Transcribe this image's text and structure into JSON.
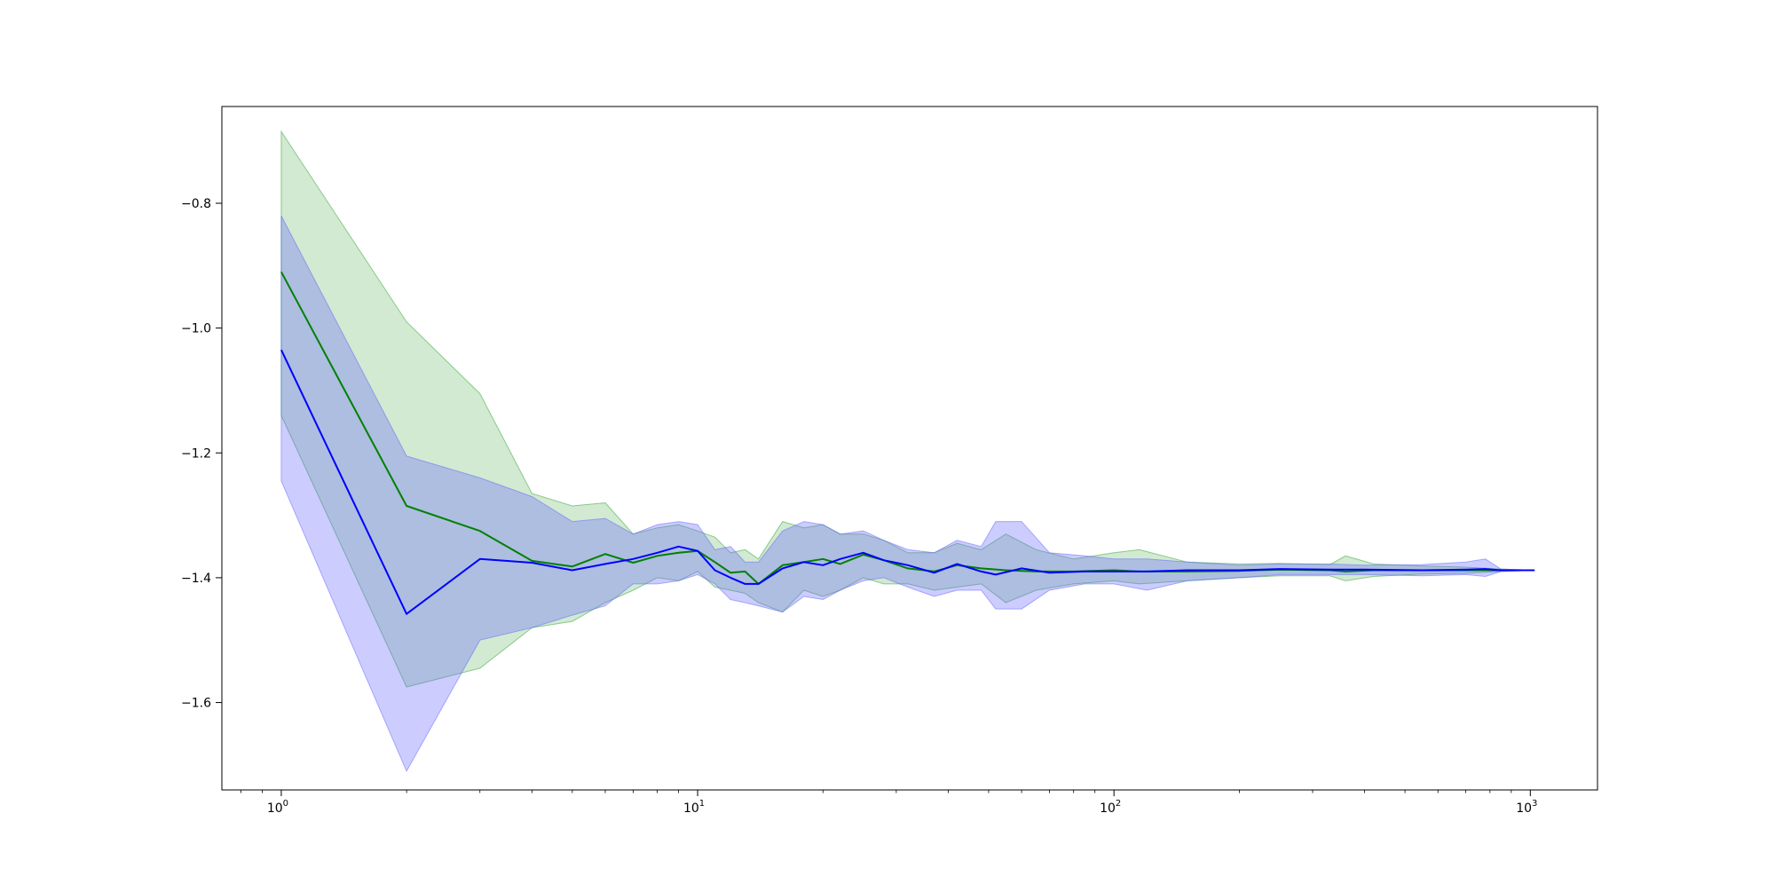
{
  "chart_data": {
    "type": "line",
    "title": "",
    "xlabel": "",
    "ylabel": "",
    "xscale": "log",
    "xlim": [
      0.72,
      1450
    ],
    "ylim": [
      -1.74,
      -0.645
    ],
    "grid": false,
    "legend": "none",
    "x_ticks": [
      {
        "value": 1,
        "base": "10",
        "exp": "0"
      },
      {
        "value": 10,
        "base": "10",
        "exp": "1"
      },
      {
        "value": 100,
        "base": "10",
        "exp": "2"
      },
      {
        "value": 1000,
        "base": "10",
        "exp": "3"
      }
    ],
    "y_ticks": [
      {
        "value": -0.8,
        "label": "−0.8"
      },
      {
        "value": -1.0,
        "label": "−1.0"
      },
      {
        "value": -1.2,
        "label": "−1.2"
      },
      {
        "value": -1.4,
        "label": "−1.4"
      },
      {
        "value": -1.6,
        "label": "−1.6"
      }
    ],
    "series": [
      {
        "color": "#008000",
        "band_color": "#2ca02c",
        "band_opacity": 0.22,
        "points": [
          [
            1,
            -0.91,
            -1.14,
            -0.685
          ],
          [
            2,
            -1.285,
            -1.575,
            -0.99
          ],
          [
            3,
            -1.325,
            -1.545,
            -1.105
          ],
          [
            4,
            -1.373,
            -1.48,
            -1.265
          ],
          [
            5,
            -1.382,
            -1.47,
            -1.285
          ],
          [
            6,
            -1.362,
            -1.44,
            -1.28
          ],
          [
            7,
            -1.376,
            -1.42,
            -1.33
          ],
          [
            8,
            -1.365,
            -1.4,
            -1.32
          ],
          [
            9,
            -1.36,
            -1.405,
            -1.315
          ],
          [
            10,
            -1.357,
            -1.39,
            -1.325
          ],
          [
            11,
            -1.375,
            -1.415,
            -1.335
          ],
          [
            12,
            -1.392,
            -1.42,
            -1.36
          ],
          [
            13,
            -1.39,
            -1.425,
            -1.355
          ],
          [
            14,
            -1.41,
            -1.44,
            -1.37
          ],
          [
            16,
            -1.38,
            -1.455,
            -1.31
          ],
          [
            18,
            -1.375,
            -1.42,
            -1.32
          ],
          [
            20,
            -1.37,
            -1.43,
            -1.315
          ],
          [
            22,
            -1.378,
            -1.42,
            -1.33
          ],
          [
            25,
            -1.363,
            -1.4,
            -1.33
          ],
          [
            28,
            -1.372,
            -1.41,
            -1.34
          ],
          [
            32,
            -1.385,
            -1.41,
            -1.36
          ],
          [
            37,
            -1.39,
            -1.42,
            -1.36
          ],
          [
            42,
            -1.38,
            -1.415,
            -1.345
          ],
          [
            48,
            -1.385,
            -1.41,
            -1.355
          ],
          [
            55,
            -1.388,
            -1.44,
            -1.33
          ],
          [
            65,
            -1.39,
            -1.42,
            -1.355
          ],
          [
            80,
            -1.39,
            -1.41,
            -1.37
          ],
          [
            100,
            -1.388,
            -1.405,
            -1.36
          ],
          [
            115,
            -1.39,
            -1.41,
            -1.355
          ],
          [
            150,
            -1.39,
            -1.405,
            -1.375
          ],
          [
            200,
            -1.389,
            -1.4,
            -1.378
          ],
          [
            250,
            -1.387,
            -1.397,
            -1.377
          ],
          [
            330,
            -1.388,
            -1.397,
            -1.379
          ],
          [
            360,
            -1.39,
            -1.405,
            -1.365
          ],
          [
            420,
            -1.388,
            -1.398,
            -1.378
          ],
          [
            550,
            -1.388,
            -1.394,
            -1.381
          ],
          [
            700,
            -1.388,
            -1.393,
            -1.383
          ],
          [
            850,
            -1.388,
            -1.39,
            -1.386
          ],
          [
            1024,
            -1.388,
            -1.388,
            -1.388
          ]
        ]
      },
      {
        "color": "#0000ff",
        "band_color": "#6464ff",
        "band_opacity": 0.33,
        "points": [
          [
            1,
            -1.035,
            -1.245,
            -0.82
          ],
          [
            2,
            -1.458,
            -1.71,
            -1.205
          ],
          [
            3,
            -1.37,
            -1.5,
            -1.24
          ],
          [
            4,
            -1.376,
            -1.48,
            -1.27
          ],
          [
            5,
            -1.388,
            -1.46,
            -1.31
          ],
          [
            6,
            -1.378,
            -1.445,
            -1.305
          ],
          [
            7,
            -1.37,
            -1.41,
            -1.33
          ],
          [
            8,
            -1.36,
            -1.41,
            -1.315
          ],
          [
            9,
            -1.35,
            -1.405,
            -1.31
          ],
          [
            10,
            -1.357,
            -1.395,
            -1.315
          ],
          [
            11,
            -1.388,
            -1.41,
            -1.355
          ],
          [
            12,
            -1.4,
            -1.435,
            -1.35
          ],
          [
            13,
            -1.41,
            -1.44,
            -1.375
          ],
          [
            14,
            -1.41,
            -1.445,
            -1.375
          ],
          [
            16,
            -1.385,
            -1.455,
            -1.325
          ],
          [
            18,
            -1.375,
            -1.43,
            -1.31
          ],
          [
            20,
            -1.38,
            -1.435,
            -1.315
          ],
          [
            22,
            -1.37,
            -1.42,
            -1.33
          ],
          [
            25,
            -1.36,
            -1.405,
            -1.325
          ],
          [
            28,
            -1.372,
            -1.4,
            -1.34
          ],
          [
            32,
            -1.38,
            -1.415,
            -1.355
          ],
          [
            37,
            -1.392,
            -1.43,
            -1.36
          ],
          [
            42,
            -1.378,
            -1.42,
            -1.34
          ],
          [
            48,
            -1.39,
            -1.42,
            -1.35
          ],
          [
            52,
            -1.395,
            -1.45,
            -1.31
          ],
          [
            60,
            -1.385,
            -1.45,
            -1.31
          ],
          [
            70,
            -1.392,
            -1.42,
            -1.36
          ],
          [
            85,
            -1.39,
            -1.41,
            -1.365
          ],
          [
            100,
            -1.39,
            -1.41,
            -1.37
          ],
          [
            120,
            -1.39,
            -1.42,
            -1.37
          ],
          [
            150,
            -1.388,
            -1.405,
            -1.375
          ],
          [
            200,
            -1.388,
            -1.4,
            -1.38
          ],
          [
            250,
            -1.386,
            -1.395,
            -1.378
          ],
          [
            330,
            -1.387,
            -1.395,
            -1.378
          ],
          [
            400,
            -1.387,
            -1.395,
            -1.38
          ],
          [
            550,
            -1.388,
            -1.397,
            -1.379
          ],
          [
            700,
            -1.387,
            -1.395,
            -1.375
          ],
          [
            780,
            -1.386,
            -1.398,
            -1.37
          ],
          [
            850,
            -1.388,
            -1.39,
            -1.386
          ],
          [
            1024,
            -1.388,
            -1.388,
            -1.388
          ]
        ]
      }
    ]
  }
}
